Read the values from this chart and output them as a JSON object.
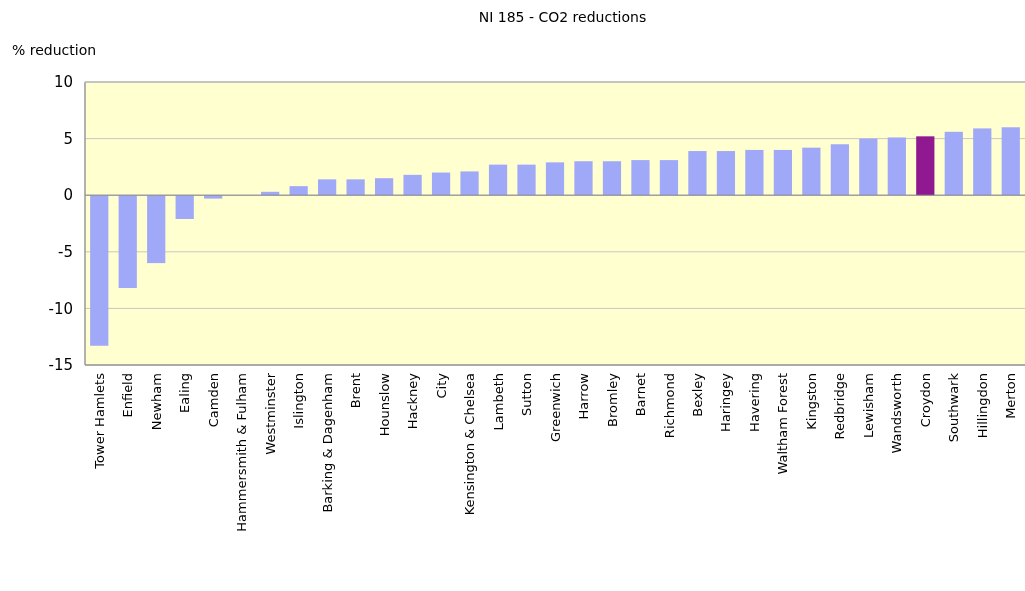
{
  "chart_data": {
    "type": "bar",
    "title": "NI 185 - CO2 reductions",
    "ylabel": "% reduction",
    "categories": [
      "Tower Hamlets",
      "Enfield",
      "Newham",
      "Ealing",
      "Camden",
      "Hammersmith & Fulham",
      "Westminster",
      "Islington",
      "Barking & Dagenham",
      "Brent",
      "Hounslow",
      "Hackney",
      "City",
      "Kensington & Chelsea",
      "Lambeth",
      "Sutton",
      "Greenwich",
      "Harrow",
      "Bromley",
      "Barnet",
      "Richmond",
      "Bexley",
      "Haringey",
      "Havering",
      "Waltham Forest",
      "Kingston",
      "Redbridge",
      "Lewisham",
      "Wandsworth",
      "Croydon",
      "Southwark",
      "Hillingdon",
      "Merton"
    ],
    "values": [
      -13.3,
      -8.2,
      -6.0,
      -2.1,
      -0.3,
      0,
      0.3,
      0.8,
      1.4,
      1.4,
      1.5,
      1.8,
      2.0,
      2.1,
      2.7,
      2.7,
      2.9,
      3.0,
      3.0,
      3.1,
      3.1,
      3.9,
      3.9,
      4.0,
      4.0,
      4.2,
      4.5,
      5.0,
      5.1,
      5.2,
      5.6,
      5.9,
      6.0
    ],
    "colors": [
      "#a0a8f8",
      "#a0a8f8",
      "#a0a8f8",
      "#a0a8f8",
      "#a0a8f8",
      "#a0a8f8",
      "#a0a8f8",
      "#a0a8f8",
      "#a0a8f8",
      "#a0a8f8",
      "#a0a8f8",
      "#a0a8f8",
      "#a0a8f8",
      "#a0a8f8",
      "#a0a8f8",
      "#a0a8f8",
      "#a0a8f8",
      "#a0a8f8",
      "#a0a8f8",
      "#a0a8f8",
      "#a0a8f8",
      "#a0a8f8",
      "#a0a8f8",
      "#a0a8f8",
      "#a0a8f8",
      "#a0a8f8",
      "#a0a8f8",
      "#a0a8f8",
      "#a0a8f8",
      "#901890",
      "#a0a8f8",
      "#a0a8f8",
      "#a0a8f8"
    ],
    "ylim": [
      -15,
      10
    ],
    "yticks": [
      -15,
      -10,
      -5,
      0,
      5,
      10
    ],
    "grid": "y"
  }
}
